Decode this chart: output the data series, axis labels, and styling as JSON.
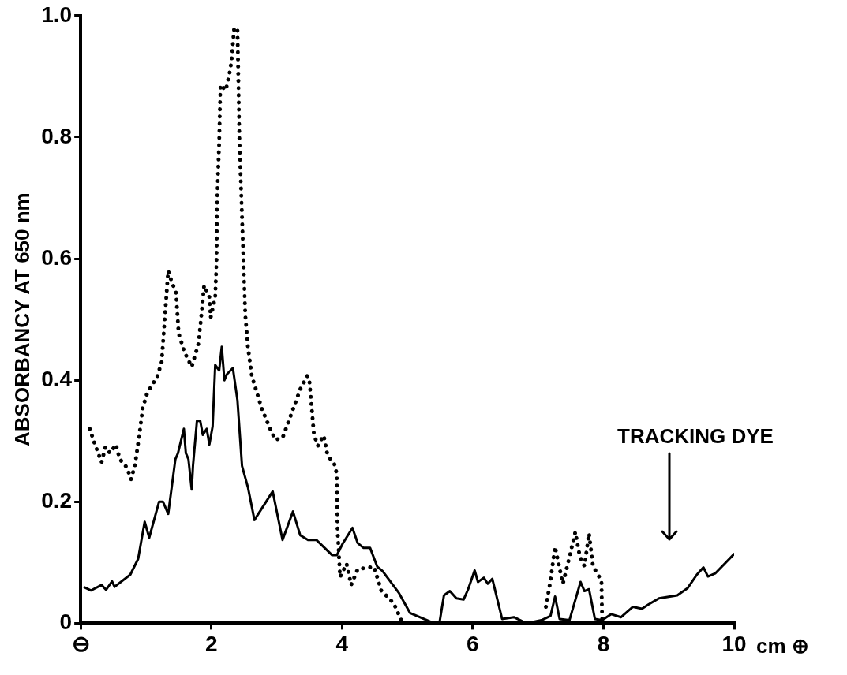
{
  "chart_data": {
    "type": "line",
    "ylabel": "ABSORBANCY AT 650 nm",
    "xlabel": "cm ⊕",
    "xlim": [
      0,
      10
    ],
    "xticks": [
      {
        "value": 0,
        "label": "⊖"
      },
      2,
      4,
      6,
      8,
      10
    ],
    "ylim": [
      0,
      1
    ],
    "yticks": [
      0,
      0.2,
      0.4,
      0.6,
      0.8,
      {
        "value": 1,
        "label": "1.0"
      }
    ],
    "grid": false,
    "legend": false,
    "marker": "none",
    "annotations": [
      "TRACKING DYE"
    ],
    "series": [
      {
        "color": "#000000",
        "line_style": "solid",
        "x": [
          0.06,
          0.16,
          0.32,
          0.39,
          0.48,
          0.52,
          0.76,
          0.88,
          0.98,
          1.05,
          1.2,
          1.26,
          1.34,
          1.45,
          1.49,
          1.58,
          1.61,
          1.65,
          1.7,
          1.72,
          1.78,
          1.83,
          1.87,
          1.93,
          1.97,
          2.02,
          2.06,
          2.12,
          2.16,
          2.2,
          2.24,
          2.33,
          2.4,
          2.47,
          2.56,
          2.66,
          2.94,
          3.09,
          3.25,
          3.36,
          3.48,
          3.61,
          3.85,
          3.92,
          4.01,
          4.16,
          4.24,
          4.33,
          4.43,
          4.54,
          4.62,
          4.87,
          5.04,
          5.41,
          5.49,
          5.56,
          5.65,
          5.75,
          5.86,
          5.93,
          6.03,
          6.08,
          6.17,
          6.23,
          6.3,
          6.45,
          6.63,
          6.82,
          7.05,
          7.19,
          7.26,
          7.33,
          7.48,
          7.65,
          7.71,
          7.78,
          7.87,
          7.98,
          8.12,
          8.27,
          8.45,
          8.59,
          8.69,
          8.85,
          9.13,
          9.29,
          9.43,
          9.53,
          9.6,
          9.71,
          10
        ],
        "values": [
          0.059,
          0.054,
          0.063,
          0.055,
          0.069,
          0.06,
          0.08,
          0.106,
          0.167,
          0.141,
          0.2,
          0.2,
          0.18,
          0.27,
          0.28,
          0.32,
          0.28,
          0.27,
          0.22,
          0.26,
          0.333,
          0.333,
          0.31,
          0.32,
          0.294,
          0.324,
          0.425,
          0.416,
          0.455,
          0.4,
          0.41,
          0.42,
          0.367,
          0.259,
          0.224,
          0.17,
          0.217,
          0.137,
          0.184,
          0.145,
          0.137,
          0.137,
          0.112,
          0.112,
          0.131,
          0.157,
          0.132,
          0.124,
          0.124,
          0.093,
          0.086,
          0.05,
          0.017,
          0,
          0,
          0.046,
          0.053,
          0.041,
          0.039,
          0.056,
          0.087,
          0.068,
          0.075,
          0.065,
          0.073,
          0.007,
          0.01,
          0,
          0.005,
          0.012,
          0.044,
          0.007,
          0.005,
          0.068,
          0.053,
          0.056,
          0.007,
          0.005,
          0.015,
          0.01,
          0.027,
          0.024,
          0.031,
          0.041,
          0.046,
          0.058,
          0.08,
          0.092,
          0.077,
          0.082,
          0.114
        ]
      },
      {
        "color": "#000000",
        "line_style": "dotted",
        "x": [
          0.14,
          0.2,
          0.32,
          0.38,
          0.45,
          0.54,
          0.6,
          0.71,
          0.77,
          0.83,
          0.9,
          0.95,
          1.01,
          1.08,
          1.17,
          1.24,
          1.26,
          1.34,
          1.39,
          1.46,
          1.5,
          1.59,
          1.7,
          1.8,
          1.84,
          1.89,
          1.97,
          1.99,
          2.06,
          2.08,
          2.09,
          2.12,
          2.14,
          2.22,
          2.27,
          2.31,
          2.35,
          2.4,
          2.41,
          2.43,
          2.47,
          2.52,
          2.56,
          2.62,
          2.77,
          2.9,
          2.98,
          3.09,
          3.23,
          3.36,
          3.47,
          3.5,
          3.53,
          3.57,
          3.63,
          3.72,
          3.78,
          3.88,
          3.92,
          3.93,
          3.97,
          4.07,
          4.14,
          4.24,
          4.49,
          4.6,
          4.79,
          4.93,
          6,
          7.12,
          7.19,
          7.26,
          7.33,
          7.38,
          7.48,
          7.57,
          7.64,
          7.71,
          7.78,
          7.84,
          7.97,
          7.98
        ],
        "values": [
          0.32,
          0.3,
          0.265,
          0.29,
          0.28,
          0.294,
          0.27,
          0.256,
          0.237,
          0.259,
          0.311,
          0.354,
          0.376,
          0.39,
          0.405,
          0.43,
          0.46,
          0.58,
          0.563,
          0.544,
          0.477,
          0.446,
          0.422,
          0.459,
          0.498,
          0.556,
          0.537,
          0.503,
          0.537,
          0.595,
          0.7,
          0.79,
          0.886,
          0.877,
          0.9,
          0.925,
          0.98,
          0.978,
          0.92,
          0.795,
          0.668,
          0.507,
          0.455,
          0.407,
          0.354,
          0.32,
          0.302,
          0.305,
          0.346,
          0.385,
          0.407,
          0.4,
          0.363,
          0.311,
          0.292,
          0.309,
          0.276,
          0.263,
          0.246,
          0.158,
          0.076,
          0.098,
          0.063,
          0.089,
          0.093,
          0.054,
          0.033,
          0,
          null,
          0.027,
          0.07,
          0.126,
          0.09,
          0.065,
          0.109,
          0.15,
          0.109,
          0.094,
          0.148,
          0.094,
          0.07,
          0.007
        ]
      }
    ]
  }
}
